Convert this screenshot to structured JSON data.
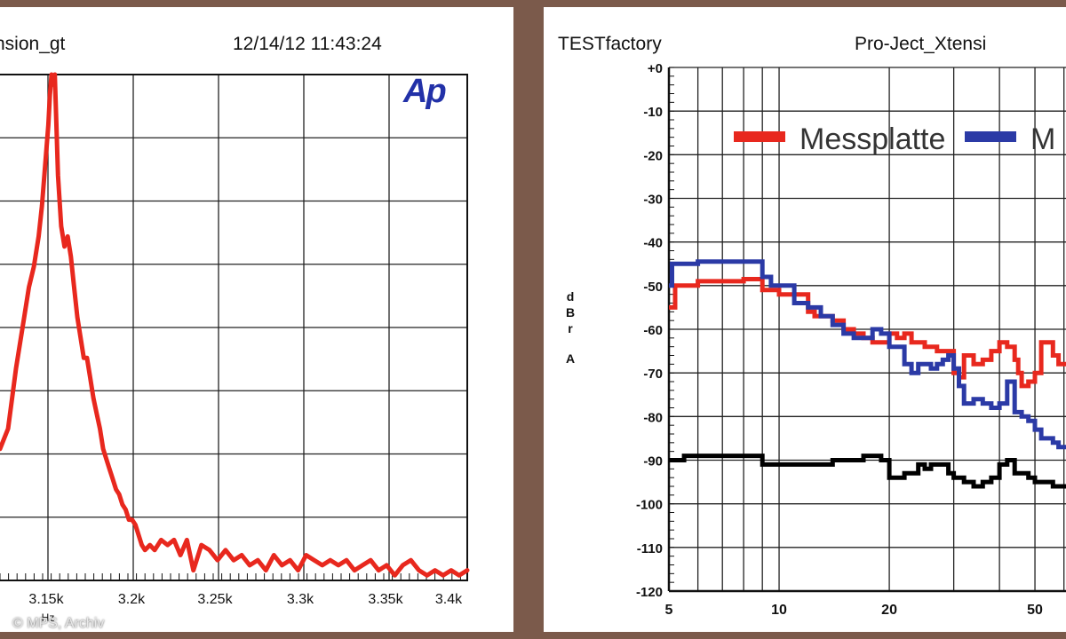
{
  "left_panel": {
    "title_fragment": "nsion_gt",
    "timestamp": "12/14/12 11:43:24",
    "logo": "Ap",
    "xlabel": "Hz",
    "copyright": "© MPS, Archiv"
  },
  "right_panel": {
    "brand": "TESTfactory",
    "title_fragment": "Pro-Ject_Xtensi",
    "ylabel": [
      "d",
      "B",
      "r",
      "",
      "A"
    ]
  },
  "colors": {
    "red": "#e8281e",
    "blue": "#2b3aa6",
    "black": "#000000",
    "background": "#7b5a4b"
  },
  "chart_data": [
    {
      "type": "line",
      "title": "",
      "xlabel": "Hz",
      "ylabel": "",
      "x_ticks": [
        "3.15k",
        "3.2k",
        "3.25k",
        "3.3k",
        "3.35k",
        "3.4k"
      ],
      "xlim": [
        3110,
        3400
      ],
      "series": [
        {
          "color": "#e8281e",
          "x": [
            3110,
            3115,
            3120,
            3125,
            3128,
            3131,
            3134,
            3136,
            3138,
            3140,
            3141,
            3142,
            3143,
            3144,
            3145,
            3146,
            3148,
            3150,
            3152,
            3154,
            3156,
            3158,
            3160,
            3162,
            3164,
            3166,
            3168,
            3170,
            3172,
            3174,
            3176,
            3178,
            3180,
            3182,
            3184,
            3186,
            3188,
            3190,
            3192,
            3194,
            3196,
            3198,
            3200,
            3203,
            3206,
            3210,
            3214,
            3218,
            3222,
            3226,
            3230,
            3235,
            3240,
            3245,
            3250,
            3255,
            3260,
            3265,
            3270,
            3275,
            3280,
            3285,
            3290,
            3295,
            3300,
            3305,
            3310,
            3315,
            3320,
            3325,
            3330,
            3335,
            3340,
            3345,
            3350,
            3355,
            3360,
            3365,
            3370,
            3375,
            3380,
            3385,
            3390,
            3395,
            3400
          ],
          "y": [
            0.26,
            0.3,
            0.42,
            0.52,
            0.58,
            0.62,
            0.68,
            0.74,
            0.82,
            0.9,
            0.96,
            1.0,
            0.98,
            1.0,
            0.9,
            0.8,
            0.7,
            0.66,
            0.68,
            0.64,
            0.58,
            0.52,
            0.48,
            0.44,
            0.44,
            0.4,
            0.36,
            0.33,
            0.3,
            0.26,
            0.24,
            0.22,
            0.2,
            0.18,
            0.17,
            0.15,
            0.14,
            0.12,
            0.12,
            0.11,
            0.09,
            0.07,
            0.06,
            0.07,
            0.06,
            0.08,
            0.07,
            0.08,
            0.05,
            0.08,
            0.02,
            0.07,
            0.06,
            0.04,
            0.06,
            0.04,
            0.05,
            0.03,
            0.04,
            0.02,
            0.05,
            0.03,
            0.04,
            0.02,
            0.05,
            0.04,
            0.03,
            0.04,
            0.03,
            0.04,
            0.02,
            0.03,
            0.04,
            0.02,
            0.03,
            0.01,
            0.03,
            0.04,
            0.02,
            0.01,
            0.02,
            0.01,
            0.02,
            0.01,
            0.02
          ]
        }
      ]
    },
    {
      "type": "line",
      "title": "",
      "xlabel": "",
      "ylabel": "dBr A",
      "x_scale": "log",
      "xlim": [
        5,
        65
      ],
      "ylim": [
        -120,
        0
      ],
      "x_ticks": [
        "5",
        "10",
        "20",
        "50"
      ],
      "y_ticks": [
        "+0",
        "-10",
        "-20",
        "-30",
        "-40",
        "-50",
        "-60",
        "-70",
        "-80",
        "-90",
        "-100",
        "-110",
        "-120"
      ],
      "legend": "top",
      "series": [
        {
          "name": "Messplatte",
          "color": "#e8281e",
          "x": [
            5,
            5.2,
            6,
            7,
            8,
            8.9,
            9,
            9.5,
            10,
            10.5,
            11,
            12,
            12.5,
            13,
            14,
            15,
            16,
            17,
            18,
            19,
            20,
            21,
            22,
            23,
            24,
            25,
            26,
            27,
            28,
            29,
            30,
            31,
            32,
            34,
            36,
            38,
            40,
            42,
            44,
            45,
            46,
            48,
            50,
            52,
            54,
            56,
            58,
            60,
            62,
            65
          ],
          "y": [
            -55,
            -50,
            -49,
            -49,
            -48.5,
            -48.5,
            -51,
            -51,
            -52,
            -52,
            -52,
            -56,
            -57,
            -57,
            -58,
            -60,
            -61,
            -62,
            -63,
            -63,
            -61,
            -62,
            -61,
            -63,
            -63,
            -64,
            -64,
            -65,
            -65,
            -65,
            -70,
            -71,
            -66,
            -68,
            -67,
            -65,
            -63,
            -64,
            -67,
            -70,
            -73,
            -72,
            -70,
            -63,
            -63,
            -66,
            -68,
            -68,
            -68,
            -68
          ]
        },
        {
          "name": "M",
          "color": "#2b3aa6",
          "x": [
            5,
            5.1,
            5.5,
            6,
            7,
            8,
            8.9,
            9,
            9.5,
            10,
            10.5,
            11,
            12,
            12.5,
            13,
            14,
            15,
            16,
            17,
            18,
            19,
            20,
            21,
            22,
            23,
            24,
            25,
            26,
            27,
            28,
            29,
            30,
            31,
            32,
            34,
            36,
            38,
            40,
            42,
            44,
            46,
            48,
            50,
            52,
            54,
            56,
            58,
            60,
            62,
            65
          ],
          "y": [
            -50,
            -45,
            -45,
            -44.5,
            -44.5,
            -44.5,
            -44.5,
            -48,
            -50,
            -50,
            -50,
            -54,
            -55,
            -55,
            -57,
            -59,
            -61,
            -62,
            -62,
            -60,
            -61,
            -64,
            -64,
            -68,
            -70,
            -68,
            -68,
            -69,
            -68,
            -67,
            -66,
            -69,
            -73,
            -77,
            -76,
            -77,
            -78,
            -77,
            -72,
            -79,
            -80,
            -81,
            -83,
            -85,
            -85,
            -86,
            -87,
            -87,
            -87,
            -88
          ]
        },
        {
          "color": "#000000",
          "x": [
            5,
            5.5,
            6,
            7,
            8,
            8.9,
            9,
            10,
            11,
            12,
            13,
            14,
            15,
            16,
            17,
            18,
            19,
            20,
            21,
            22,
            23,
            24,
            25,
            26,
            27,
            28,
            29,
            30,
            31,
            32,
            34,
            36,
            38,
            40,
            42,
            44,
            46,
            48,
            50,
            52,
            54,
            56,
            58,
            60,
            62,
            65
          ],
          "y": [
            -90,
            -89,
            -89,
            -89,
            -89,
            -89,
            -91,
            -91,
            -91,
            -91,
            -91,
            -90,
            -90,
            -90,
            -89,
            -89,
            -90,
            -94,
            -94,
            -93,
            -93,
            -91,
            -92,
            -91,
            -91,
            -91,
            -93,
            -94,
            -94,
            -95,
            -96,
            -95,
            -94,
            -91,
            -90,
            -93,
            -93,
            -94,
            -95,
            -95,
            -95,
            -96,
            -96,
            -96,
            -96,
            -96
          ]
        }
      ]
    }
  ]
}
